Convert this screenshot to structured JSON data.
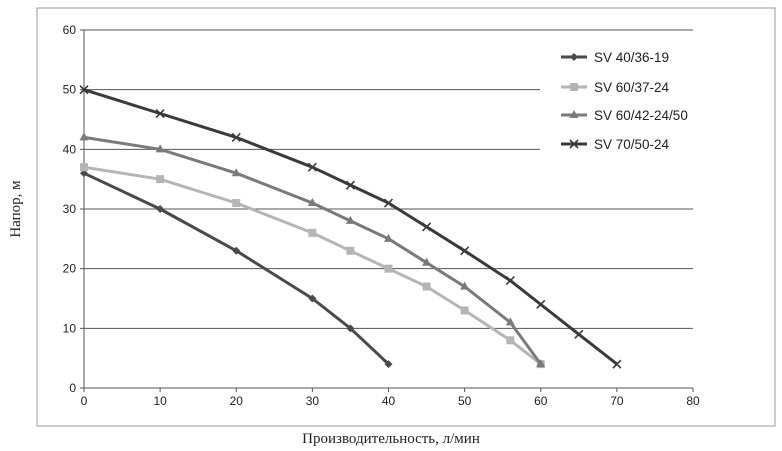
{
  "chart_data": {
    "type": "line",
    "xlabel": "Производительность, л/мин",
    "ylabel": "Напор, м",
    "xlim": [
      0,
      80
    ],
    "ylim": [
      0,
      60
    ],
    "xticks": [
      "0",
      "10",
      "20",
      "30",
      "40",
      "50",
      "60",
      "70",
      "80"
    ],
    "yticks": [
      "0",
      "10",
      "20",
      "30",
      "40",
      "50",
      "60"
    ],
    "grid": "horizontal",
    "legend_position": "right",
    "series": [
      {
        "name": "SV 40/36-19",
        "color": "#4a4a4a",
        "marker": "diamond",
        "x": [
          0,
          10,
          20,
          30,
          35,
          40
        ],
        "y": [
          36,
          30,
          23,
          15,
          10,
          4
        ]
      },
      {
        "name": "SV 60/37-24",
        "color": "#b5b5b5",
        "marker": "square",
        "x": [
          0,
          10,
          20,
          30,
          35,
          40,
          45,
          50,
          56,
          60
        ],
        "y": [
          37,
          35,
          31,
          26,
          23,
          20,
          17,
          13,
          8,
          4
        ]
      },
      {
        "name": "SV 60/42-24/50",
        "color": "#7a7a7a",
        "marker": "triangle",
        "x": [
          0,
          10,
          20,
          30,
          35,
          40,
          45,
          50,
          56,
          60
        ],
        "y": [
          42,
          40,
          36,
          31,
          28,
          25,
          21,
          17,
          11,
          4
        ]
      },
      {
        "name": "SV 70/50-24",
        "color": "#3a3a3a",
        "marker": "x",
        "x": [
          0,
          10,
          20,
          30,
          35,
          40,
          45,
          50,
          56,
          60,
          65,
          70
        ],
        "y": [
          50,
          46,
          42,
          37,
          34,
          31,
          27,
          23,
          18,
          14,
          9,
          4
        ]
      }
    ]
  }
}
